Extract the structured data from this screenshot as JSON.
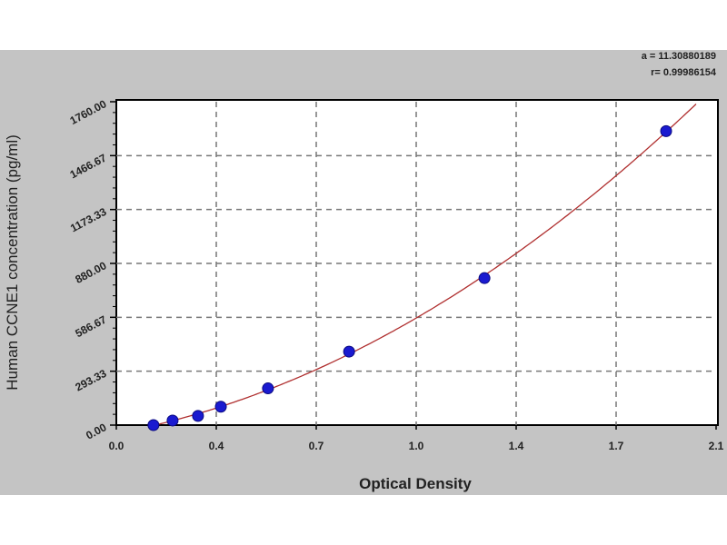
{
  "chart_data": {
    "type": "scatter",
    "title": "",
    "xlabel": "Optical Density",
    "ylabel": "Human CCNE1 concentration (pg/ml)",
    "xlim": [
      0,
      2.1
    ],
    "ylim": [
      0,
      1760
    ],
    "x_ticks": [
      "0.0",
      "0.4",
      "0.7",
      "1.0",
      "1.4",
      "1.7",
      "2.1"
    ],
    "y_ticks": [
      "0.00",
      "293.33",
      "586.67",
      "880.00",
      "1173.33",
      "1466.67",
      "1760.00"
    ],
    "grid": true,
    "annotations": [
      "a = 11.30880189",
      "r= 0.99986154"
    ],
    "series": [
      {
        "x": [
          0.13,
          0.197,
          0.286,
          0.366,
          0.531,
          0.815,
          1.289,
          1.925
        ],
        "y": [
          0,
          25,
          50,
          100,
          200,
          400,
          800,
          1600
        ],
        "marker_color": "#1a1ad0",
        "line_color": "#b03030",
        "fit": "curve"
      }
    ]
  }
}
